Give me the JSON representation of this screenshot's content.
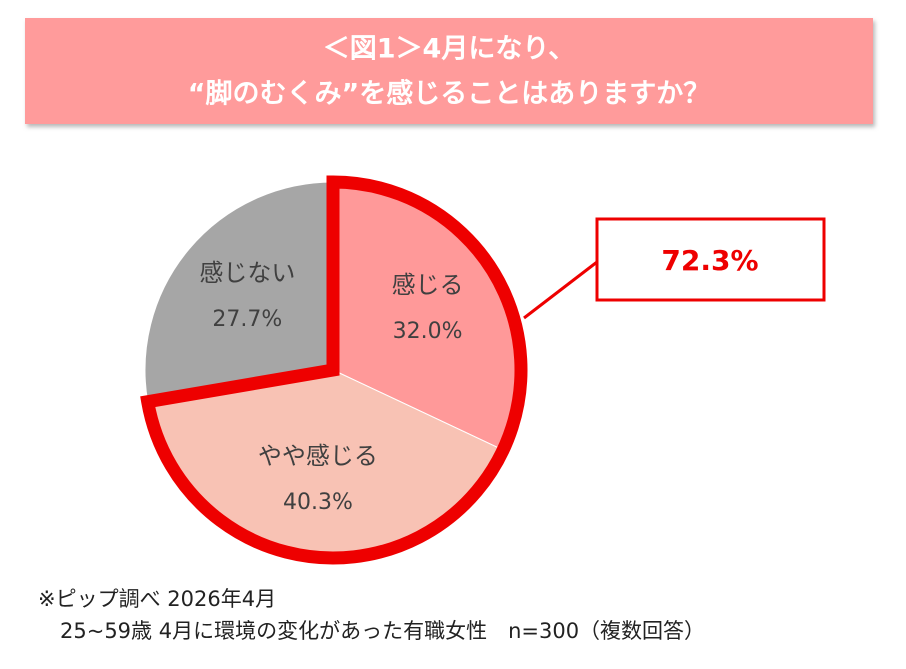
{
  "chart_data": {
    "type": "pie",
    "title": [
      "＜図1＞4月になり、",
      "“脚のむくみ”を感じることはありますか？"
    ],
    "categories": [
      "感じる",
      "やや感じる",
      "感じない"
    ],
    "values": [
      32.0,
      40.3,
      27.7
    ],
    "value_labels": [
      "32.0%",
      "40.3%",
      "27.7%"
    ],
    "colors": [
      "#ff9999",
      "#f8c2b4",
      "#a6a6a6"
    ],
    "highlight_color": "#ee0000",
    "callout": "72.3%",
    "notes": [
      "※ピップ調べ 2026年4月",
      "25~59歳  4月に環境の変化があった有職女性　n=300（複数回答）"
    ]
  }
}
